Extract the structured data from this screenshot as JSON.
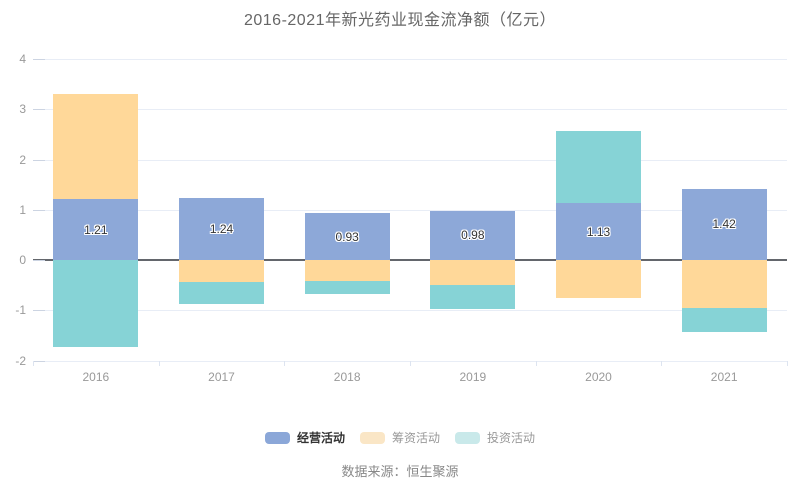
{
  "page": {
    "background": "#ffffff"
  },
  "chart_data": {
    "type": "bar",
    "stacked": true,
    "title": "2016-2021年新光药业现金流净额（亿元）",
    "source": "数据来源：恒生聚源",
    "categories": [
      "2016",
      "2017",
      "2018",
      "2019",
      "2020",
      "2021"
    ],
    "series": [
      {
        "key": "operating",
        "name": "经营活动",
        "color": "#8DA8D8",
        "legend_swatch": "#8BA7D8",
        "legend_text_color": "#333333",
        "legend_bold": true,
        "show_value_labels": true,
        "values": [
          1.21,
          1.24,
          0.93,
          0.98,
          1.13,
          1.42
        ]
      },
      {
        "key": "financing",
        "name": "筹资活动",
        "color": "#FFD899",
        "legend_swatch": "#FAE6C6",
        "legend_text_color": "#999999",
        "legend_bold": false,
        "show_value_labels": false,
        "values": [
          2.1,
          -0.44,
          -0.42,
          -0.49,
          -0.75,
          -0.96
        ]
      },
      {
        "key": "investing",
        "name": "投资活动",
        "color": "#86D3D6",
        "legend_swatch": "#C9E9EA",
        "legend_text_color": "#999999",
        "legend_bold": false,
        "show_value_labels": false,
        "values": [
          -1.73,
          -0.44,
          -0.25,
          -0.49,
          1.43,
          -0.47
        ]
      }
    ],
    "value_labels": [
      "1.21",
      "1.24",
      "0.93",
      "0.98",
      "1.13",
      "1.42"
    ],
    "ylim": [
      -2,
      4
    ],
    "yticks": [
      4,
      3,
      2,
      1,
      0,
      -1,
      -2
    ],
    "grid": true,
    "legend_position": "bottom",
    "colors": {
      "grid_line": "#e8edf6",
      "zero_line": "#63666c",
      "axis_label": "#999999",
      "value_label": "#333333",
      "title": "#666666",
      "source_text": "#888888"
    }
  }
}
